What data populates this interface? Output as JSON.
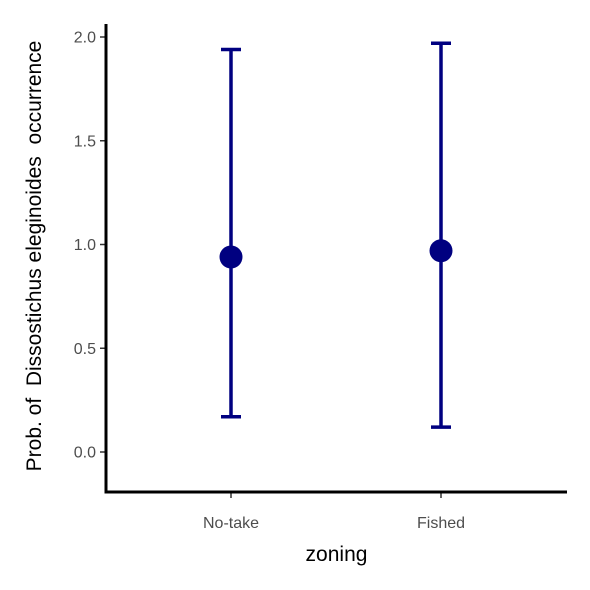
{
  "chart_data": {
    "type": "scatter",
    "subtype": "point-with-error-bars",
    "title": "",
    "xlabel": "zoning",
    "ylabel": "Prob. of  Dissostichus eleginoides  occurrence",
    "categories": [
      "No-take",
      "Fished"
    ],
    "series": [
      {
        "values": [
          0.94,
          0.97
        ],
        "lower": [
          0.17,
          0.12
        ],
        "upper": [
          1.94,
          1.97
        ]
      }
    ],
    "ylim": [
      -0.2,
      2.07
    ],
    "yticks": [
      0.0,
      0.5,
      1.0,
      1.5,
      2.0
    ],
    "ytick_labels": [
      "0.0",
      "0.5",
      "1.0",
      "1.5",
      "2.0"
    ],
    "grid": false,
    "legend": "none",
    "colors": {
      "point": "#000080",
      "axis": "#000000",
      "tick_text": "#4d4d4d"
    }
  }
}
